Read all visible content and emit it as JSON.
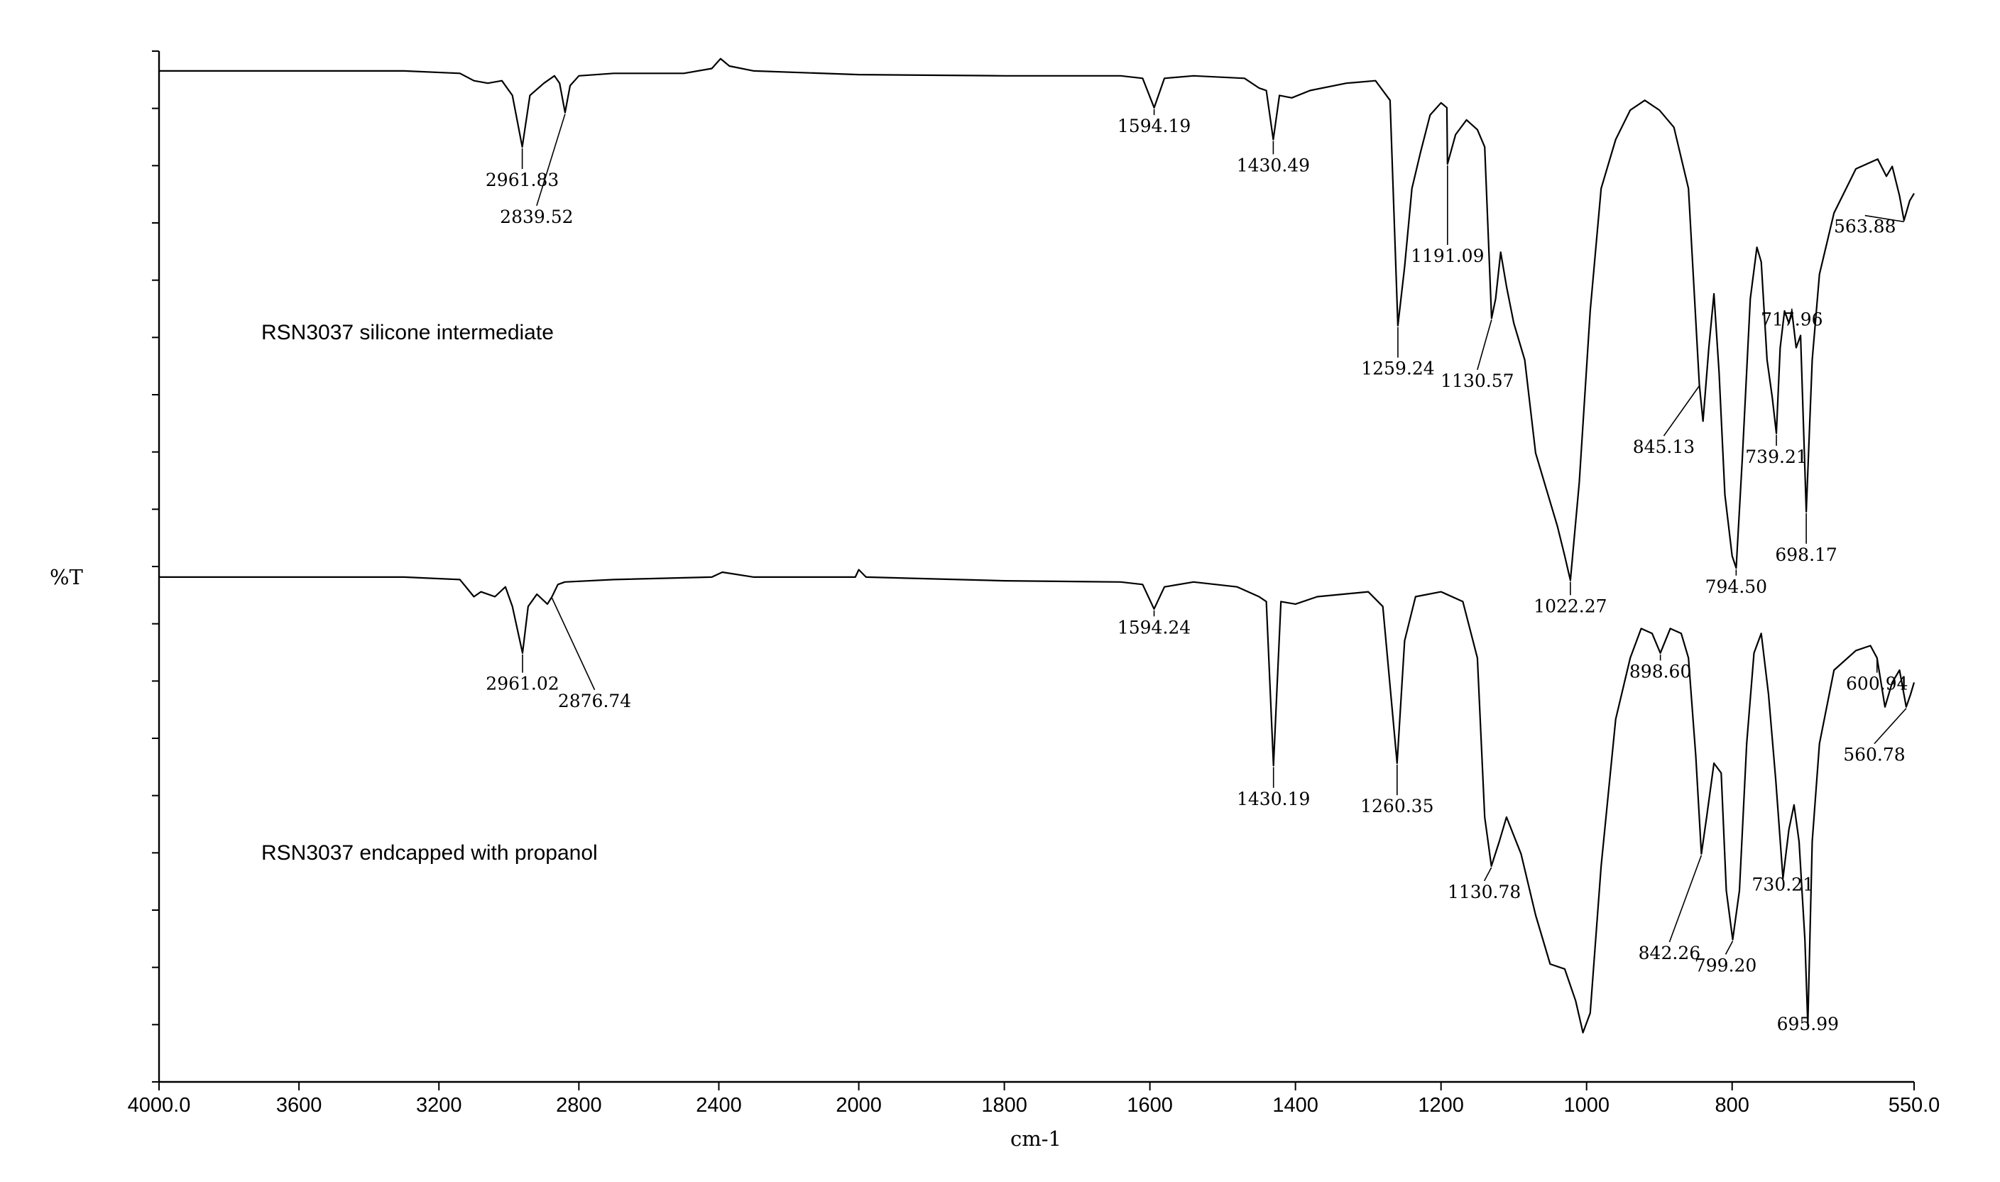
{
  "chart_data": {
    "type": "line",
    "xlabel": "cm-1",
    "ylabel": "%T",
    "xlim": [
      4000.0,
      550.0
    ],
    "x_reversed": true,
    "x_ticks": [
      "4000.0",
      "3600",
      "3200",
      "2800",
      "2400",
      "2000",
      "1800",
      "1600",
      "1400",
      "1200",
      "1000",
      "800",
      "550.0"
    ],
    "x_tick_values": [
      4000,
      3600,
      3200,
      2800,
      2400,
      2000,
      1800,
      1600,
      1400,
      1200,
      1000,
      800,
      550
    ],
    "x_axis_breakpoints": [
      [
        4000,
        0
      ],
      [
        2000,
        0.3987
      ],
      [
        550,
        1
      ]
    ],
    "y_axis_ticks": 18,
    "grid": false,
    "series": [
      {
        "name": "RSN3037 silicone intermediate",
        "points": [
          [
            4000,
            0.02
          ],
          [
            3300,
            0.02
          ],
          [
            3140,
            0.03
          ],
          [
            3100,
            0.06
          ],
          [
            3060,
            0.07
          ],
          [
            3020,
            0.06
          ],
          [
            2990,
            0.12
          ],
          [
            2961.83,
            0.33
          ],
          [
            2940,
            0.12
          ],
          [
            2900,
            0.07
          ],
          [
            2870,
            0.04
          ],
          [
            2855,
            0.07
          ],
          [
            2839.52,
            0.19
          ],
          [
            2825,
            0.08
          ],
          [
            2800,
            0.04
          ],
          [
            2700,
            0.03
          ],
          [
            2500,
            0.03
          ],
          [
            2420,
            0.01
          ],
          [
            2395,
            -0.03
          ],
          [
            2370,
            0.0
          ],
          [
            2300,
            0.02
          ],
          [
            2000,
            0.035
          ],
          [
            1800,
            0.04
          ],
          [
            1640,
            0.04
          ],
          [
            1610,
            0.05
          ],
          [
            1594.19,
            0.17
          ],
          [
            1580,
            0.05
          ],
          [
            1540,
            0.04
          ],
          [
            1470,
            0.05
          ],
          [
            1450,
            0.09
          ],
          [
            1440,
            0.1
          ],
          [
            1430.49,
            0.3
          ],
          [
            1422,
            0.12
          ],
          [
            1405,
            0.13
          ],
          [
            1380,
            0.1
          ],
          [
            1330,
            0.07
          ],
          [
            1290,
            0.06
          ],
          [
            1270,
            0.14
          ],
          [
            1259.24,
            1.06
          ],
          [
            1250,
            0.82
          ],
          [
            1240,
            0.5
          ],
          [
            1228,
            0.35
          ],
          [
            1215,
            0.2
          ],
          [
            1200,
            0.15
          ],
          [
            1192,
            0.17
          ],
          [
            1191.09,
            0.4
          ],
          [
            1180,
            0.28
          ],
          [
            1165,
            0.22
          ],
          [
            1150,
            0.26
          ],
          [
            1140,
            0.33
          ],
          [
            1130.57,
            1.03
          ],
          [
            1125,
            0.95
          ],
          [
            1118,
            0.76
          ],
          [
            1110,
            0.9
          ],
          [
            1100,
            1.05
          ],
          [
            1085,
            1.2
          ],
          [
            1070,
            1.58
          ],
          [
            1055,
            1.73
          ],
          [
            1040,
            1.88
          ],
          [
            1030,
            2.0
          ],
          [
            1022.27,
            2.1
          ],
          [
            1010,
            1.7
          ],
          [
            995,
            1.0
          ],
          [
            980,
            0.5
          ],
          [
            960,
            0.3
          ],
          [
            940,
            0.18
          ],
          [
            920,
            0.14
          ],
          [
            900,
            0.18
          ],
          [
            880,
            0.25
          ],
          [
            860,
            0.5
          ],
          [
            845.13,
            1.3
          ],
          [
            840,
            1.45
          ],
          [
            832,
            1.15
          ],
          [
            825,
            0.93
          ],
          [
            818,
            1.25
          ],
          [
            810,
            1.75
          ],
          [
            800,
            2.0
          ],
          [
            794.5,
            2.05
          ],
          [
            786,
            1.6
          ],
          [
            775,
            0.95
          ],
          [
            766,
            0.74
          ],
          [
            760,
            0.8
          ],
          [
            752,
            1.2
          ],
          [
            745,
            1.35
          ],
          [
            739.21,
            1.5
          ],
          [
            734,
            1.15
          ],
          [
            728,
            1.0
          ],
          [
            722,
            1.05
          ],
          [
            717.96,
            1.0
          ],
          [
            712,
            1.15
          ],
          [
            706,
            1.1
          ],
          [
            698.17,
            1.82
          ],
          [
            690,
            1.2
          ],
          [
            680,
            0.85
          ],
          [
            660,
            0.6
          ],
          [
            630,
            0.42
          ],
          [
            600,
            0.38
          ],
          [
            588,
            0.45
          ],
          [
            580,
            0.41
          ],
          [
            570,
            0.53
          ],
          [
            563.88,
            0.63
          ],
          [
            556,
            0.55
          ],
          [
            550,
            0.52
          ]
        ]
      },
      {
        "name": "RSN3037 endcapped with propanol",
        "points": [
          [
            4000,
            0.02
          ],
          [
            3300,
            0.02
          ],
          [
            3140,
            0.03
          ],
          [
            3100,
            0.1
          ],
          [
            3080,
            0.08
          ],
          [
            3040,
            0.1
          ],
          [
            3010,
            0.06
          ],
          [
            2990,
            0.14
          ],
          [
            2961.02,
            0.33
          ],
          [
            2945,
            0.14
          ],
          [
            2920,
            0.09
          ],
          [
            2890,
            0.13
          ],
          [
            2876.74,
            0.1
          ],
          [
            2860,
            0.05
          ],
          [
            2840,
            0.04
          ],
          [
            2700,
            0.03
          ],
          [
            2420,
            0.02
          ],
          [
            2390,
            0.0
          ],
          [
            2300,
            0.02
          ],
          [
            2010,
            0.02
          ],
          [
            2000,
            -0.01
          ],
          [
            1990,
            0.02
          ],
          [
            1800,
            0.035
          ],
          [
            1640,
            0.04
          ],
          [
            1610,
            0.05
          ],
          [
            1594.24,
            0.15
          ],
          [
            1580,
            0.06
          ],
          [
            1540,
            0.04
          ],
          [
            1480,
            0.06
          ],
          [
            1450,
            0.1
          ],
          [
            1440,
            0.12
          ],
          [
            1430.19,
            0.79
          ],
          [
            1420,
            0.12
          ],
          [
            1400,
            0.13
          ],
          [
            1370,
            0.1
          ],
          [
            1300,
            0.08
          ],
          [
            1280,
            0.14
          ],
          [
            1260.35,
            0.78
          ],
          [
            1250,
            0.28
          ],
          [
            1235,
            0.1
          ],
          [
            1200,
            0.08
          ],
          [
            1170,
            0.12
          ],
          [
            1150,
            0.35
          ],
          [
            1140,
            1.0
          ],
          [
            1130.78,
            1.2
          ],
          [
            1120,
            1.1
          ],
          [
            1110,
            1.0
          ],
          [
            1090,
            1.15
          ],
          [
            1070,
            1.4
          ],
          [
            1050,
            1.6
          ],
          [
            1030,
            1.62
          ],
          [
            1015,
            1.75
          ],
          [
            1005,
            1.88
          ],
          [
            995,
            1.8
          ],
          [
            980,
            1.2
          ],
          [
            960,
            0.6
          ],
          [
            940,
            0.35
          ],
          [
            925,
            0.23
          ],
          [
            910,
            0.25
          ],
          [
            898.6,
            0.33
          ],
          [
            885,
            0.23
          ],
          [
            870,
            0.25
          ],
          [
            860,
            0.35
          ],
          [
            850,
            0.75
          ],
          [
            842.26,
            1.15
          ],
          [
            835,
            1.0
          ],
          [
            825,
            0.78
          ],
          [
            815,
            0.82
          ],
          [
            808,
            1.3
          ],
          [
            799.2,
            1.5
          ],
          [
            790,
            1.3
          ],
          [
            780,
            0.7
          ],
          [
            770,
            0.33
          ],
          [
            760,
            0.25
          ],
          [
            750,
            0.5
          ],
          [
            740,
            0.85
          ],
          [
            730.21,
            1.25
          ],
          [
            722,
            1.05
          ],
          [
            715,
            0.95
          ],
          [
            708,
            1.1
          ],
          [
            700,
            1.5
          ],
          [
            695.99,
            1.85
          ],
          [
            690,
            1.1
          ],
          [
            680,
            0.7
          ],
          [
            660,
            0.4
          ],
          [
            630,
            0.32
          ],
          [
            610,
            0.3
          ],
          [
            600.94,
            0.35
          ],
          [
            590,
            0.55
          ],
          [
            580,
            0.45
          ],
          [
            570,
            0.4
          ],
          [
            560.78,
            0.55
          ],
          [
            555,
            0.5
          ],
          [
            550,
            0.45
          ]
        ]
      }
    ],
    "annotations": [
      {
        "series": 0,
        "x": 2961.83,
        "label": "2961.83",
        "dx": 0,
        "dy": 0.16
      },
      {
        "series": 0,
        "x": 2839.52,
        "label": "2839.52",
        "dx": -40,
        "dy": 0.45
      },
      {
        "series": 0,
        "x": 1594.19,
        "label": "1594.19",
        "dx": 0,
        "dy": 0.1
      },
      {
        "series": 0,
        "x": 1430.49,
        "label": "1430.49",
        "dx": 0,
        "dy": 0.13
      },
      {
        "series": 0,
        "x": 1191.09,
        "label": "1191.09",
        "dx": 0,
        "dy": 0.4
      },
      {
        "series": 0,
        "x": 1259.24,
        "label": "1259.24",
        "dx": 0,
        "dy": 0.2
      },
      {
        "series": 0,
        "x": 1130.57,
        "label": "1130.57",
        "dx": -20,
        "dy": 0.28
      },
      {
        "series": 0,
        "x": 1022.27,
        "label": "1022.27",
        "dx": 0,
        "dy": 0.13
      },
      {
        "series": 0,
        "x": 845.13,
        "label": "845.13",
        "dx": -50,
        "dy": 0.28
      },
      {
        "series": 0,
        "x": 794.5,
        "label": "794.50",
        "dx": 0,
        "dy": 0.1
      },
      {
        "series": 0,
        "x": 739.21,
        "label": "739.21",
        "dx": 0,
        "dy": 0.12
      },
      {
        "series": 0,
        "x": 717.96,
        "label": "717.96",
        "dx": 0,
        "dy": 0.06
      },
      {
        "series": 0,
        "x": 698.17,
        "label": "698.17",
        "dx": 0,
        "dy": 0.2
      },
      {
        "series": 0,
        "x": 563.88,
        "label": "563.88",
        "dx": -55,
        "dy": 0.05
      },
      {
        "series": 1,
        "x": 2961.02,
        "label": "2961.02",
        "dx": 0,
        "dy": 0.15
      },
      {
        "series": 1,
        "x": 2876.74,
        "label": "2876.74",
        "dx": 60,
        "dy": 0.45
      },
      {
        "series": 1,
        "x": 1594.24,
        "label": "1594.24",
        "dx": 0,
        "dy": 0.1
      },
      {
        "series": 1,
        "x": 1430.19,
        "label": "1430.19",
        "dx": 0,
        "dy": 0.16
      },
      {
        "series": 1,
        "x": 1260.35,
        "label": "1260.35",
        "dx": 0,
        "dy": 0.2
      },
      {
        "series": 1,
        "x": 1130.78,
        "label": "1130.78",
        "dx": -10,
        "dy": 0.13
      },
      {
        "series": 1,
        "x": 898.6,
        "label": "898.60",
        "dx": 0,
        "dy": 0.1
      },
      {
        "series": 1,
        "x": 842.26,
        "label": "842.26",
        "dx": -45,
        "dy": 0.43
      },
      {
        "series": 1,
        "x": 799.2,
        "label": "799.20",
        "dx": -10,
        "dy": 0.13
      },
      {
        "series": 1,
        "x": 730.21,
        "label": "730.21",
        "dx": 0,
        "dy": 0.05
      },
      {
        "series": 1,
        "x": 695.99,
        "label": "695.99",
        "dx": 0,
        "dy": 0.02
      },
      {
        "series": 1,
        "x": 600.94,
        "label": "600.94",
        "dx": 0,
        "dy": 0.13
      },
      {
        "series": 1,
        "x": 560.78,
        "label": "560.78",
        "dx": -45,
        "dy": 0.22
      }
    ]
  }
}
